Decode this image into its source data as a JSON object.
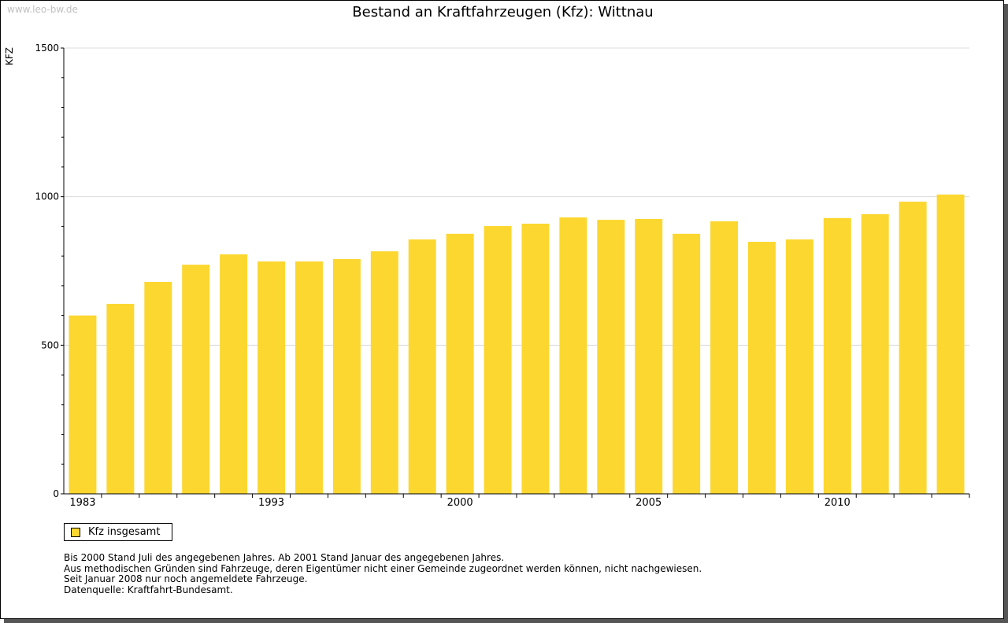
{
  "watermark": "www.leo-bw.de",
  "chart_data": {
    "type": "bar",
    "title": "Bestand an Kraftfahrzeugen (Kfz): Wittnau",
    "ylabel": "KFZ",
    "xlabel": "",
    "ylim": [
      0,
      1500
    ],
    "yticks": [
      0,
      500,
      1000,
      1500
    ],
    "grid": true,
    "categories": [
      "1983",
      "",
      "",
      "",
      "",
      "1993",
      "",
      "",
      "",
      "",
      "2000",
      "",
      "",
      "",
      "",
      "2005",
      "",
      "",
      "",
      "",
      "2010",
      "",
      "",
      ""
    ],
    "series": [
      {
        "name": "Kfz insgesamt",
        "color": "#fcd72f",
        "values": [
          600,
          639,
          713,
          771,
          806,
          782,
          782,
          790,
          816,
          856,
          875,
          901,
          909,
          930,
          922,
          925,
          875,
          917,
          848,
          856,
          928,
          941,
          983,
          1007
        ]
      }
    ],
    "legend_position": "bottom-left"
  },
  "notes": [
    "Bis 2000 Stand Juli des angegebenen Jahres. Ab 2001 Stand Januar des angegebenen Jahres.",
    "Aus methodischen Gründen sind Fahrzeuge, deren Eigentümer nicht einer Gemeinde zugeordnet werden können, nicht nachgewiesen.",
    "Seit Januar 2008 nur noch angemeldete Fahrzeuge.",
    "",
    "Datenquelle: Kraftfahrt-Bundesamt."
  ]
}
